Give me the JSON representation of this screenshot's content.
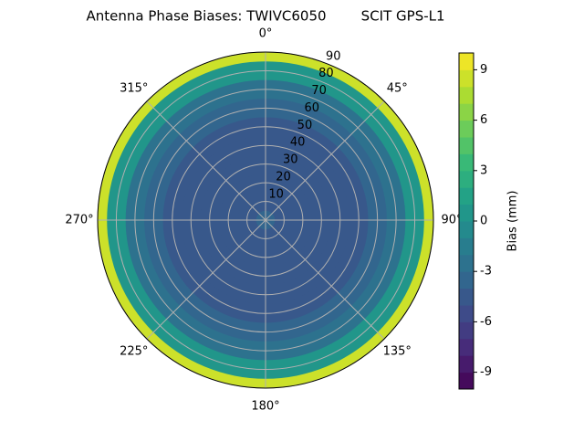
{
  "chart_data": {
    "type": "polar-contour",
    "title": "Antenna Phase Biases: TWIVC6050        SCIT GPS-L1",
    "colormap": "viridis",
    "r": [
      0,
      10,
      20,
      30,
      40,
      50,
      60,
      70,
      80,
      90
    ],
    "values": [
      -4,
      -4.2,
      -4.6,
      -5,
      -5,
      -4.8,
      -4,
      -2.5,
      0.5,
      8
    ],
    "rlim": [
      0,
      90
    ],
    "rticks": [
      10,
      20,
      30,
      40,
      50,
      60,
      70,
      80,
      90
    ],
    "thetaticks": [
      {
        "value": 0,
        "label": "0°"
      },
      {
        "value": 45,
        "label": "45°"
      },
      {
        "value": 90,
        "label": "90°"
      },
      {
        "value": 135,
        "label": "135°"
      },
      {
        "value": 180,
        "label": "180°"
      },
      {
        "value": 225,
        "label": "225°"
      },
      {
        "value": 270,
        "label": "270°"
      },
      {
        "value": 315,
        "label": "315°"
      }
    ],
    "grid": true,
    "colorbar": {
      "label": "Bias (mm)",
      "lim": [
        -10,
        10
      ],
      "levels": [
        -10,
        -9,
        -8,
        -7,
        -6,
        -5,
        -4,
        -3,
        -2,
        -1,
        0,
        1,
        2,
        3,
        4,
        5,
        6,
        7,
        8,
        9,
        10
      ],
      "ticks": [
        -9,
        -6,
        -3,
        0,
        3,
        6,
        9
      ]
    }
  }
}
